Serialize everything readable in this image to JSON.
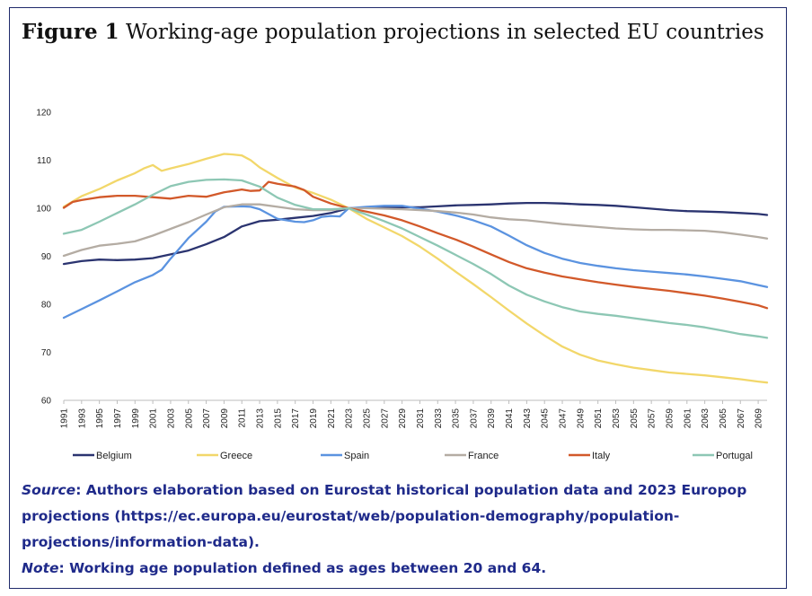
{
  "figure": {
    "label": "Figure 1",
    "title": "Working-age population projections in selected EU countries"
  },
  "chart_data": {
    "type": "line",
    "title": "Working-age population projections in selected EU countries",
    "xlabel": "",
    "ylabel": "",
    "ylim": [
      60,
      120
    ],
    "yticks": [
      60,
      70,
      80,
      90,
      100,
      110,
      120
    ],
    "xlim": [
      1991,
      2070
    ],
    "x_tick_labels": [
      "1991",
      "1993",
      "1995",
      "1997",
      "1999",
      "2001",
      "2003",
      "2005",
      "2007",
      "2009",
      "2011",
      "2013",
      "2015",
      "2017",
      "2019",
      "2021",
      "2023",
      "2025",
      "2027",
      "2029",
      "2031",
      "2033",
      "2035",
      "2037",
      "2039",
      "2041",
      "2043",
      "2045",
      "2047",
      "2049",
      "2051",
      "2053",
      "2055",
      "2057",
      "2059",
      "2061",
      "2063",
      "2065",
      "2067",
      "2069"
    ],
    "legend_position": "bottom",
    "grid": false,
    "series": [
      {
        "name": "Belgium",
        "color": "#2b3470",
        "points": [
          [
            1991,
            88.4
          ],
          [
            1993,
            89
          ],
          [
            1995,
            89.3
          ],
          [
            1997,
            89.2
          ],
          [
            1999,
            89.3
          ],
          [
            2001,
            89.6
          ],
          [
            2003,
            90.4
          ],
          [
            2005,
            91.2
          ],
          [
            2007,
            92.5
          ],
          [
            2009,
            94
          ],
          [
            2011,
            96.2
          ],
          [
            2013,
            97.3
          ],
          [
            2015,
            97.6
          ],
          [
            2017,
            98
          ],
          [
            2019,
            98.4
          ],
          [
            2021,
            99
          ],
          [
            2023,
            100
          ],
          [
            2025,
            100.1
          ],
          [
            2027,
            100.2
          ],
          [
            2029,
            100.2
          ],
          [
            2031,
            100.2
          ],
          [
            2033,
            100.4
          ],
          [
            2035,
            100.6
          ],
          [
            2037,
            100.7
          ],
          [
            2039,
            100.8
          ],
          [
            2041,
            101
          ],
          [
            2043,
            101.1
          ],
          [
            2045,
            101.1
          ],
          [
            2047,
            101
          ],
          [
            2049,
            100.8
          ],
          [
            2051,
            100.7
          ],
          [
            2053,
            100.5
          ],
          [
            2055,
            100.2
          ],
          [
            2057,
            99.9
          ],
          [
            2059,
            99.6
          ],
          [
            2061,
            99.4
          ],
          [
            2063,
            99.3
          ],
          [
            2065,
            99.2
          ],
          [
            2067,
            99
          ],
          [
            2069,
            98.8
          ],
          [
            2070,
            98.6
          ]
        ]
      },
      {
        "name": "Greece",
        "color": "#f2d76a",
        "points": [
          [
            1991,
            100.3
          ],
          [
            1993,
            102.5
          ],
          [
            1995,
            104
          ],
          [
            1997,
            105.8
          ],
          [
            1999,
            107.3
          ],
          [
            2000,
            108.3
          ],
          [
            2001,
            109
          ],
          [
            2002,
            107.8
          ],
          [
            2003,
            108.3
          ],
          [
            2005,
            109.2
          ],
          [
            2007,
            110.3
          ],
          [
            2009,
            111.3
          ],
          [
            2010,
            111.2
          ],
          [
            2011,
            111
          ],
          [
            2012,
            110
          ],
          [
            2013,
            108.5
          ],
          [
            2015,
            106.3
          ],
          [
            2017,
            104.3
          ],
          [
            2019,
            103.2
          ],
          [
            2021,
            101.8
          ],
          [
            2023,
            100
          ],
          [
            2025,
            97.8
          ],
          [
            2027,
            96
          ],
          [
            2029,
            94.2
          ],
          [
            2031,
            92
          ],
          [
            2033,
            89.5
          ],
          [
            2035,
            86.8
          ],
          [
            2037,
            84.2
          ],
          [
            2039,
            81.5
          ],
          [
            2041,
            78.7
          ],
          [
            2043,
            76
          ],
          [
            2045,
            73.5
          ],
          [
            2047,
            71.2
          ],
          [
            2049,
            69.5
          ],
          [
            2051,
            68.3
          ],
          [
            2053,
            67.5
          ],
          [
            2055,
            66.8
          ],
          [
            2057,
            66.3
          ],
          [
            2059,
            65.8
          ],
          [
            2061,
            65.5
          ],
          [
            2063,
            65.2
          ],
          [
            2065,
            64.8
          ],
          [
            2067,
            64.4
          ],
          [
            2069,
            63.9
          ],
          [
            2070,
            63.7
          ]
        ]
      },
      {
        "name": "Spain",
        "color": "#5b93e0",
        "points": [
          [
            1991,
            77.2
          ],
          [
            1993,
            79
          ],
          [
            1995,
            80.8
          ],
          [
            1997,
            82.7
          ],
          [
            1999,
            84.6
          ],
          [
            2001,
            86.1
          ],
          [
            2002,
            87.2
          ],
          [
            2003,
            89.5
          ],
          [
            2005,
            93.8
          ],
          [
            2007,
            97.2
          ],
          [
            2008,
            99.3
          ],
          [
            2009,
            100.3
          ],
          [
            2011,
            100.4
          ],
          [
            2012,
            100.3
          ],
          [
            2013,
            99.8
          ],
          [
            2015,
            97.8
          ],
          [
            2017,
            97.2
          ],
          [
            2018,
            97.1
          ],
          [
            2019,
            97.5
          ],
          [
            2020,
            98.2
          ],
          [
            2021,
            98.4
          ],
          [
            2022,
            98.3
          ],
          [
            2023,
            100
          ],
          [
            2025,
            100.3
          ],
          [
            2027,
            100.5
          ],
          [
            2029,
            100.5
          ],
          [
            2031,
            99.9
          ],
          [
            2033,
            99.3
          ],
          [
            2035,
            98.5
          ],
          [
            2037,
            97.5
          ],
          [
            2039,
            96.2
          ],
          [
            2041,
            94.3
          ],
          [
            2043,
            92.3
          ],
          [
            2045,
            90.7
          ],
          [
            2047,
            89.5
          ],
          [
            2049,
            88.6
          ],
          [
            2051,
            88
          ],
          [
            2053,
            87.5
          ],
          [
            2055,
            87.1
          ],
          [
            2057,
            86.8
          ],
          [
            2059,
            86.5
          ],
          [
            2061,
            86.2
          ],
          [
            2063,
            85.8
          ],
          [
            2065,
            85.3
          ],
          [
            2067,
            84.8
          ],
          [
            2069,
            84
          ],
          [
            2070,
            83.6
          ]
        ]
      },
      {
        "name": "France",
        "color": "#b4aca3",
        "points": [
          [
            1991,
            90.1
          ],
          [
            1993,
            91.3
          ],
          [
            1995,
            92.2
          ],
          [
            1997,
            92.6
          ],
          [
            1999,
            93.1
          ],
          [
            2001,
            94.3
          ],
          [
            2003,
            95.7
          ],
          [
            2005,
            97.1
          ],
          [
            2007,
            98.7
          ],
          [
            2009,
            100.2
          ],
          [
            2011,
            100.8
          ],
          [
            2013,
            100.8
          ],
          [
            2015,
            100.3
          ],
          [
            2017,
            99.8
          ],
          [
            2019,
            99.6
          ],
          [
            2021,
            99.6
          ],
          [
            2023,
            100
          ],
          [
            2025,
            100
          ],
          [
            2027,
            99.9
          ],
          [
            2029,
            99.8
          ],
          [
            2031,
            99.6
          ],
          [
            2033,
            99.4
          ],
          [
            2035,
            99.1
          ],
          [
            2037,
            98.7
          ],
          [
            2039,
            98.1
          ],
          [
            2041,
            97.7
          ],
          [
            2043,
            97.5
          ],
          [
            2045,
            97.1
          ],
          [
            2047,
            96.7
          ],
          [
            2049,
            96.4
          ],
          [
            2051,
            96.1
          ],
          [
            2053,
            95.8
          ],
          [
            2055,
            95.6
          ],
          [
            2057,
            95.5
          ],
          [
            2059,
            95.5
          ],
          [
            2061,
            95.4
          ],
          [
            2063,
            95.3
          ],
          [
            2065,
            95
          ],
          [
            2067,
            94.5
          ],
          [
            2069,
            94
          ],
          [
            2070,
            93.7
          ]
        ]
      },
      {
        "name": "Italy",
        "color": "#d2592a",
        "points": [
          [
            1991,
            100.1
          ],
          [
            1992,
            101.3
          ],
          [
            1993,
            101.7
          ],
          [
            1995,
            102.3
          ],
          [
            1997,
            102.6
          ],
          [
            1999,
            102.6
          ],
          [
            2001,
            102.3
          ],
          [
            2003,
            102
          ],
          [
            2005,
            102.6
          ],
          [
            2007,
            102.4
          ],
          [
            2009,
            103.3
          ],
          [
            2011,
            103.9
          ],
          [
            2012,
            103.6
          ],
          [
            2013,
            103.7
          ],
          [
            2014,
            105.5
          ],
          [
            2015,
            105.1
          ],
          [
            2017,
            104.5
          ],
          [
            2018,
            103.8
          ],
          [
            2019,
            102.4
          ],
          [
            2021,
            101
          ],
          [
            2023,
            100
          ],
          [
            2025,
            99.3
          ],
          [
            2027,
            98.5
          ],
          [
            2029,
            97.5
          ],
          [
            2031,
            96.2
          ],
          [
            2033,
            94.8
          ],
          [
            2035,
            93.5
          ],
          [
            2037,
            92
          ],
          [
            2039,
            90.4
          ],
          [
            2041,
            88.8
          ],
          [
            2043,
            87.5
          ],
          [
            2045,
            86.6
          ],
          [
            2047,
            85.8
          ],
          [
            2049,
            85.2
          ],
          [
            2051,
            84.6
          ],
          [
            2053,
            84.1
          ],
          [
            2055,
            83.6
          ],
          [
            2057,
            83.2
          ],
          [
            2059,
            82.8
          ],
          [
            2061,
            82.3
          ],
          [
            2063,
            81.8
          ],
          [
            2065,
            81.2
          ],
          [
            2067,
            80.5
          ],
          [
            2069,
            79.8
          ],
          [
            2070,
            79.2
          ]
        ]
      },
      {
        "name": "Portugal",
        "color": "#8dc7b4",
        "points": [
          [
            1991,
            94.7
          ],
          [
            1993,
            95.5
          ],
          [
            1995,
            97.2
          ],
          [
            1997,
            99
          ],
          [
            1999,
            100.8
          ],
          [
            2001,
            102.8
          ],
          [
            2003,
            104.6
          ],
          [
            2005,
            105.5
          ],
          [
            2007,
            105.9
          ],
          [
            2009,
            106
          ],
          [
            2011,
            105.8
          ],
          [
            2013,
            104.5
          ],
          [
            2015,
            102.2
          ],
          [
            2017,
            100.7
          ],
          [
            2019,
            99.8
          ],
          [
            2021,
            99.8
          ],
          [
            2023,
            100
          ],
          [
            2025,
            98.7
          ],
          [
            2027,
            97.3
          ],
          [
            2029,
            95.8
          ],
          [
            2031,
            94
          ],
          [
            2033,
            92.2
          ],
          [
            2035,
            90.3
          ],
          [
            2037,
            88.4
          ],
          [
            2039,
            86.3
          ],
          [
            2041,
            83.9
          ],
          [
            2043,
            82
          ],
          [
            2045,
            80.6
          ],
          [
            2047,
            79.4
          ],
          [
            2049,
            78.5
          ],
          [
            2051,
            78
          ],
          [
            2053,
            77.6
          ],
          [
            2055,
            77.1
          ],
          [
            2057,
            76.6
          ],
          [
            2059,
            76.1
          ],
          [
            2061,
            75.7
          ],
          [
            2063,
            75.2
          ],
          [
            2065,
            74.5
          ],
          [
            2067,
            73.8
          ],
          [
            2069,
            73.3
          ],
          [
            2070,
            73
          ]
        ]
      }
    ]
  },
  "notes": {
    "source_label": "Source",
    "source_text": ": Authors elaboration based on Eurostat historical population data and 2023 Europop projections (https://ec.europa.eu/eurostat/web/population-demography/population-projections/information-data).",
    "note_label": "Note",
    "note_text": ": Working age population defined as ages between 20 and 64."
  }
}
